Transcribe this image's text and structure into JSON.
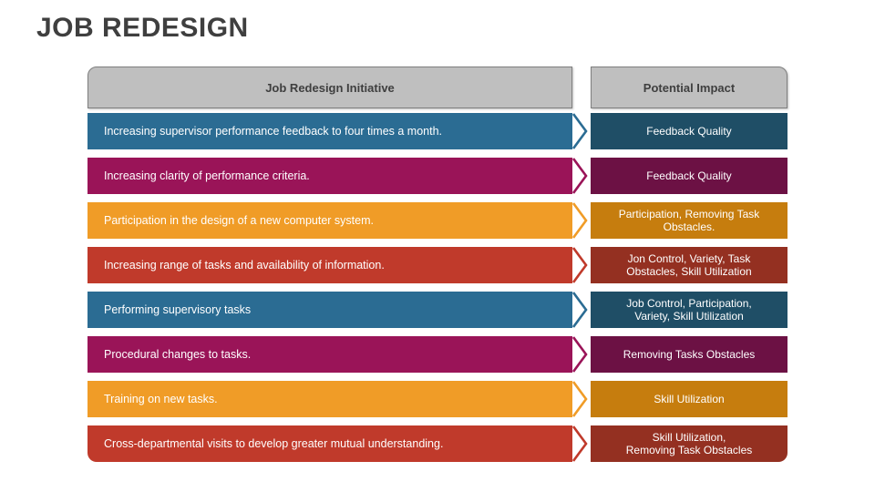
{
  "slide": {
    "title": "JOB REDESIGN",
    "background_color": "#ffffff",
    "title_color": "#3f3f3f"
  },
  "table": {
    "headers": {
      "left": "Job Redesign Initiative",
      "right": "Potential Impact",
      "fill_color": "#bfbfbf",
      "border_color": "#7f7f7f",
      "text_color": "#3f3f3f"
    },
    "rows": [
      {
        "initiative": "Increasing supervisor performance feedback to four times a month.",
        "impact": "Feedback Quality",
        "bar_color": "#2b6c93",
        "impact_color": "#1f4e66"
      },
      {
        "initiative": "Increasing clarity of performance criteria.",
        "impact": "Feedback Quality",
        "bar_color": "#9a1458",
        "impact_color": "#6c1144"
      },
      {
        "initiative": "Participation in the design of a new computer system.",
        "impact": "Participation, Removing Task\nObstacles.",
        "bar_color": "#f09c27",
        "impact_color": "#c67d0e"
      },
      {
        "initiative": "Increasing range of tasks and availability of information.",
        "impact": "Jon Control, Variety, Task\nObstacles, Skill Utilization",
        "bar_color": "#c03a2b",
        "impact_color": "#943021"
      },
      {
        "initiative": "Performing supervisory tasks",
        "impact": "Job Control, Participation,\nVariety, Skill Utilization",
        "bar_color": "#2b6c93",
        "impact_color": "#1f4e66"
      },
      {
        "initiative": "Procedural changes to tasks.",
        "impact": "Removing Tasks Obstacles",
        "bar_color": "#9a1458",
        "impact_color": "#6c1144"
      },
      {
        "initiative": "Training on new tasks.",
        "impact": "Skill Utilization",
        "bar_color": "#f09c27",
        "impact_color": "#c67d0e"
      },
      {
        "initiative": "Cross-departmental visits to develop greater mutual understanding.",
        "impact": "Skill Utilization,\nRemoving Task Obstacles",
        "bar_color": "#c03a2b",
        "impact_color": "#943021"
      }
    ]
  }
}
